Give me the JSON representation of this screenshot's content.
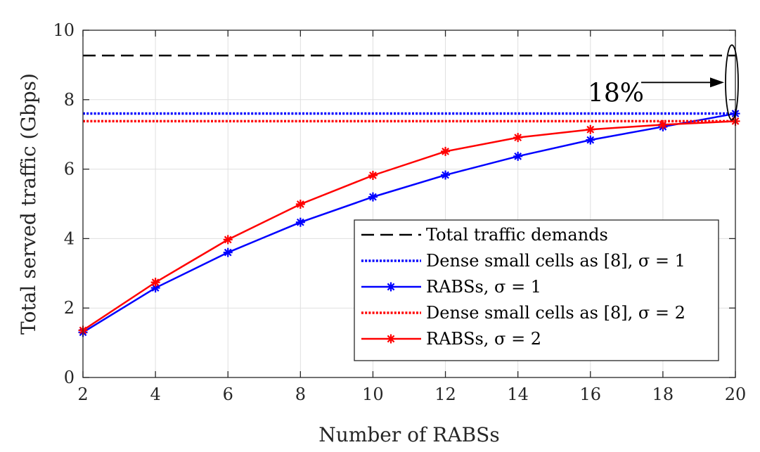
{
  "chart_data": {
    "type": "line",
    "xlabel": "Number of RABSs",
    "ylabel": "Total served traffic (Gbps)",
    "xlim": [
      2,
      20
    ],
    "ylim": [
      0,
      10
    ],
    "xticks": [
      2,
      4,
      6,
      8,
      10,
      12,
      14,
      16,
      18,
      20
    ],
    "yticks": [
      0,
      2,
      4,
      6,
      8,
      10
    ],
    "xtick_labels": [
      "2",
      "4",
      "6",
      "8",
      "10",
      "12",
      "14",
      "16",
      "18",
      "20"
    ],
    "ytick_labels": [
      "0",
      "2",
      "4",
      "6",
      "8",
      "10"
    ],
    "grid": true,
    "legend_position": "bottom-right",
    "x": [
      2,
      4,
      6,
      8,
      10,
      12,
      14,
      16,
      18,
      20
    ],
    "series": [
      {
        "name": "Total traffic demands",
        "kind": "hline",
        "value": 9.27,
        "color": "#000000",
        "style": "dashed"
      },
      {
        "name": "Dense small cells as [8], σ = 1",
        "kind": "hline",
        "value": 7.6,
        "color": "#0000ff",
        "style": "dotted"
      },
      {
        "name": "RABSs, σ = 1",
        "kind": "line",
        "values": [
          1.3,
          2.58,
          3.6,
          4.47,
          5.2,
          5.83,
          6.37,
          6.84,
          7.22,
          7.6
        ],
        "color": "#0000ff",
        "style": "solid",
        "marker": "asterisk"
      },
      {
        "name": "Dense small cells as [8], σ = 2",
        "kind": "hline",
        "value": 7.38,
        "color": "#ff0000",
        "style": "dotted"
      },
      {
        "name": "RABSs, σ = 2",
        "kind": "line",
        "values": [
          1.36,
          2.74,
          3.97,
          4.99,
          5.82,
          6.51,
          6.91,
          7.14,
          7.28,
          7.38
        ],
        "color": "#ff0000",
        "style": "solid",
        "marker": "asterisk"
      }
    ],
    "annotations": [
      {
        "text": "18%",
        "points_to_x": 20,
        "points_to_y_range": [
          7.6,
          9.27
        ]
      }
    ]
  }
}
